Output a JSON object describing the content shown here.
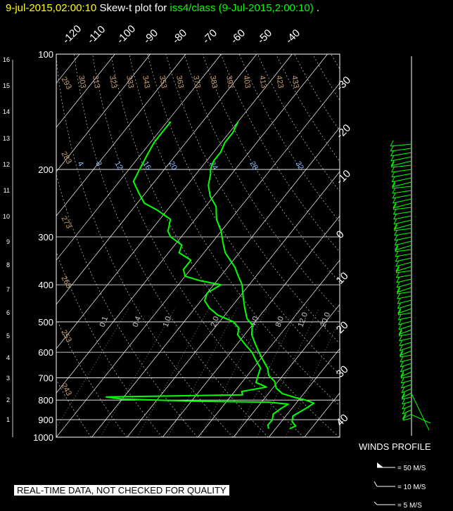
{
  "header": {
    "timestamp": "9-jul-2015,02:00:10",
    "title_prefix": "Skew-t plot for ",
    "title_source": "iss4/class (9-Jul-2015,2:00:10)",
    "title_end": "."
  },
  "notice": "REAL-TIME DATA, NOT CHECKED FOR QUALITY",
  "winds": {
    "title": "WINDS PROFILE",
    "legend": [
      "= 50 M/S",
      "= 10 M/S",
      "= 5 M/S"
    ]
  },
  "colors": {
    "sounding": "#00ff00",
    "grid": "#ffffff",
    "header_time": "#ffff00",
    "mixing": "#88bbff",
    "potential_temp": "#c8a070"
  },
  "chart_data": {
    "type": "line",
    "chart_kind": "skew-T log-P",
    "pressure_ticks": [
      "100",
      "200",
      "300",
      "400",
      "500",
      "600",
      "700",
      "800",
      "900",
      "1000"
    ],
    "altitude_ticks": [
      "1",
      "2",
      "3",
      "4",
      "5",
      "6",
      "7",
      "8",
      "9",
      "10",
      "11",
      "12",
      "13",
      "14",
      "15",
      "16"
    ],
    "isotherm_labels_top": [
      "-120",
      "-110",
      "-100",
      "-90",
      "-80",
      "-70",
      "-60",
      "-50",
      "-40"
    ],
    "isotherm_labels_right": [
      "-30",
      "-20",
      "-10",
      "0",
      "10",
      "20",
      "30",
      "40"
    ],
    "dry_adiabat_labels": [
      "303",
      "313",
      "323",
      "333",
      "343",
      "353",
      "363",
      "373",
      "383",
      "393",
      "403",
      "413",
      "423",
      "433"
    ],
    "dry_adiabat_labels_left": [
      "293",
      "283",
      "273",
      "263",
      "253",
      "243"
    ],
    "mixing_ratio_labels_upper": [
      "4",
      "8",
      "12",
      "16",
      "20",
      "24",
      "28",
      "32"
    ],
    "mixing_ratio_labels_lower": [
      "0.1",
      "0.4",
      "1.0",
      "2.0",
      "4.0",
      "8.0",
      "12.0",
      "20.0"
    ],
    "ylim": [
      1000,
      100
    ],
    "xlim": [
      -40,
      40
    ],
    "series": [
      {
        "name": "temperature",
        "points": [
          [
            950,
            24
          ],
          [
            935,
            25
          ],
          [
            910,
            23
          ],
          [
            880,
            22
          ],
          [
            860,
            23
          ],
          [
            840,
            24
          ],
          [
            815,
            25
          ],
          [
            800,
            22
          ],
          [
            790,
            19
          ],
          [
            770,
            14
          ],
          [
            745,
            11
          ],
          [
            715,
            9
          ],
          [
            690,
            6
          ],
          [
            660,
            4
          ],
          [
            630,
            1
          ],
          [
            600,
            -2
          ],
          [
            570,
            -5
          ],
          [
            540,
            -8
          ],
          [
            510,
            -10
          ],
          [
            490,
            -13
          ],
          [
            460,
            -16
          ],
          [
            430,
            -19
          ],
          [
            400,
            -22
          ],
          [
            380,
            -25
          ],
          [
            360,
            -28
          ],
          [
            330,
            -34
          ],
          [
            310,
            -37
          ],
          [
            290,
            -40
          ],
          [
            270,
            -44
          ],
          [
            250,
            -47
          ],
          [
            235,
            -51
          ],
          [
            220,
            -54
          ],
          [
            205,
            -56
          ],
          [
            200,
            -57
          ],
          [
            190,
            -58
          ],
          [
            180,
            -58
          ],
          [
            170,
            -59
          ],
          [
            160,
            -59
          ],
          [
            150,
            -60
          ]
        ]
      },
      {
        "name": "dewpoint",
        "points": [
          [
            950,
            18
          ],
          [
            930,
            17
          ],
          [
            900,
            17
          ],
          [
            870,
            16
          ],
          [
            840,
            17
          ],
          [
            820,
            18
          ],
          [
            810,
            12
          ],
          [
            805,
            -10
          ],
          [
            795,
            -30
          ],
          [
            785,
            -35
          ],
          [
            775,
            3
          ],
          [
            760,
            2
          ],
          [
            740,
            8
          ],
          [
            720,
            4
          ],
          [
            690,
            3
          ],
          [
            660,
            2
          ],
          [
            630,
            -1
          ],
          [
            600,
            -4
          ],
          [
            570,
            -8
          ],
          [
            540,
            -12
          ],
          [
            520,
            -13
          ],
          [
            500,
            -16
          ],
          [
            480,
            -22
          ],
          [
            460,
            -26
          ],
          [
            440,
            -29
          ],
          [
            420,
            -30
          ],
          [
            400,
            -28
          ],
          [
            390,
            -35
          ],
          [
            380,
            -40
          ],
          [
            365,
            -42
          ],
          [
            345,
            -42
          ],
          [
            330,
            -47
          ],
          [
            315,
            -48
          ],
          [
            300,
            -53
          ],
          [
            290,
            -55
          ],
          [
            270,
            -57
          ],
          [
            255,
            -63
          ],
          [
            245,
            -68
          ],
          [
            230,
            -72
          ],
          [
            215,
            -76
          ],
          [
            200,
            -77
          ],
          [
            185,
            -78
          ],
          [
            170,
            -79
          ],
          [
            160,
            -79
          ],
          [
            150,
            -79
          ]
        ]
      }
    ]
  }
}
